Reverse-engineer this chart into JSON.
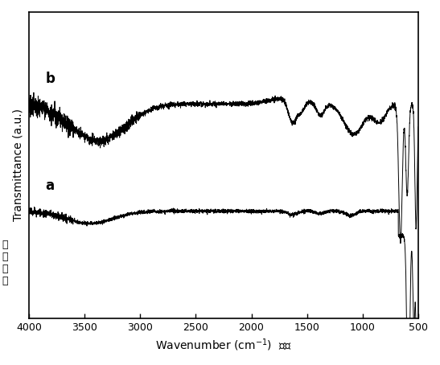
{
  "xlabel": "Wavenumber (cm⁻¹)  波数",
  "ylabel_en": "Transmittance (a.u.)",
  "label_a": "a",
  "label_b": "b",
  "line_color": "#000000",
  "background_color": "#ffffff",
  "figsize": [
    5.47,
    4.54
  ],
  "dpi": 100,
  "xticks": [
    4000,
    3500,
    3000,
    2500,
    2000,
    1500,
    1000,
    500
  ],
  "xtick_labels": [
    "4000",
    "3500",
    "3000",
    "2500",
    "2000",
    "1500",
    "1000",
    "500"
  ],
  "cn_label": "光\n透\n光\n光"
}
